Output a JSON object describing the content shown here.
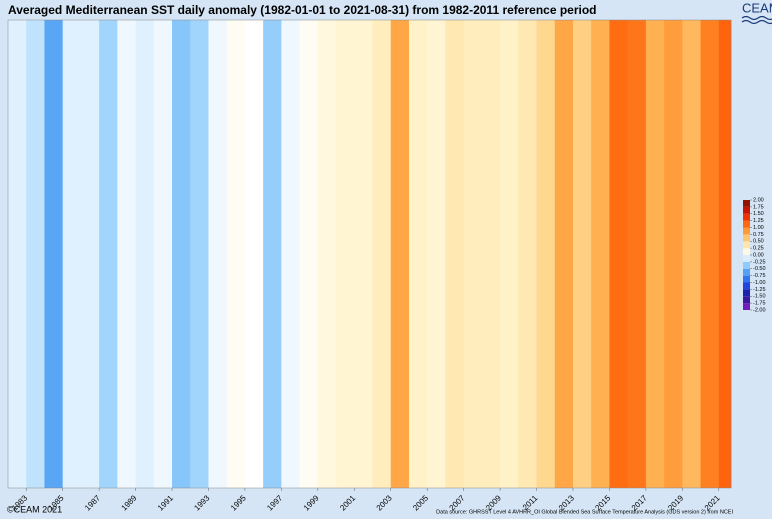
{
  "chart_data": {
    "type": "stripes",
    "title": "Averaged Mediterranean SST daily anomaly (1982-01-01 to 2021-08-31) from 1982-2011 reference period",
    "logo": "CEAM",
    "copyright": "©CEAM 2021",
    "source": "Data source: GHRSST Level 4 AVHRR_OI Global Blended Sea Surface Temperature Analysis (GDS version 2) from NCEI",
    "bins": [
      1982,
      1983,
      1984,
      1985,
      1986,
      1987,
      1988,
      1989,
      1990,
      1991,
      1992,
      1993,
      1994,
      1995,
      1996,
      1997,
      1998,
      1999,
      2000,
      2001,
      2002,
      2003,
      2004,
      2005,
      2006,
      2007,
      2008,
      2009,
      2010,
      2011,
      2012,
      2013,
      2014,
      2015,
      2016,
      2017,
      2018,
      2019,
      2020,
      2021,
      2021.67
    ],
    "values": [
      -0.1,
      -0.2,
      -0.6,
      -0.1,
      -0.1,
      -0.3,
      -0.05,
      -0.1,
      -0.05,
      -0.4,
      -0.3,
      -0.05,
      0.05,
      0,
      -0.35,
      -0.05,
      0.05,
      0.15,
      0.2,
      0.2,
      0.3,
      0.8,
      0.25,
      0.2,
      0.35,
      0.3,
      0.3,
      0.25,
      0.35,
      0.5,
      0.8,
      0.55,
      0.75,
      1.1,
      1.05,
      0.75,
      0.85,
      0.7,
      1.0,
      1.15
    ],
    "xlim": [
      1982,
      2021.67
    ],
    "xticks": [
      1983,
      1985,
      1987,
      1989,
      1991,
      1993,
      1995,
      1997,
      1999,
      2001,
      2003,
      2005,
      2007,
      2009,
      2011,
      2013,
      2015,
      2017,
      2019,
      2021
    ],
    "colorbar": {
      "ticks": [
        {
          "value": -2,
          "label": "-2.00"
        },
        {
          "value": -1.75,
          "label": "-1.75"
        },
        {
          "value": -1.5,
          "label": "-1.50"
        },
        {
          "value": -1.25,
          "label": "-1.25"
        },
        {
          "value": -1,
          "label": "-1.00"
        },
        {
          "value": -0.75,
          "label": "-0.75"
        },
        {
          "value": -0.5,
          "label": "-0.50"
        },
        {
          "value": -0.25,
          "label": "-0.25"
        },
        {
          "value": 0,
          "label": "0.00"
        },
        {
          "value": 0.25,
          "label": "0.25"
        },
        {
          "value": 0.5,
          "label": "0.50"
        },
        {
          "value": 0.75,
          "label": "0.75"
        },
        {
          "value": 1,
          "label": "1.00"
        },
        {
          "value": 1.25,
          "label": "1.25"
        },
        {
          "value": 1.5,
          "label": "1.50"
        },
        {
          "value": 1.75,
          "label": "1.75"
        },
        {
          "value": 2,
          "label": "2.00"
        }
      ],
      "colors": [
        "#8b1fc8",
        "#5a18b0",
        "#1a1a8c",
        "#1a2ad0",
        "#2a5cf0",
        "#3c8cf0",
        "#6cb8f8",
        "#b0dcfc",
        "#ffffff",
        "#fff2c8",
        "#ffd890",
        "#ffb050",
        "#ff8020",
        "#ff5000",
        "#e01800",
        "#b01000",
        "#701808"
      ]
    }
  }
}
